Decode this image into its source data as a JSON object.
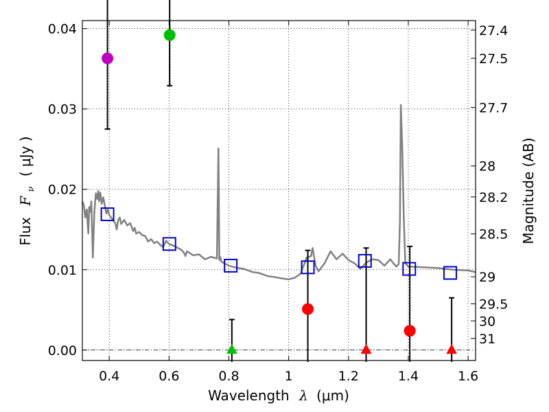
{
  "chart_data": {
    "type": "scatter",
    "title": "",
    "xlabel": {
      "prefix": "Wavelength",
      "symbol": "λ",
      "unit": "(μm)"
    },
    "ylabel": {
      "prefix": "Flux",
      "symbol": "F",
      "subscript": "ν",
      "unit": "( μJy )"
    },
    "ylabel_right": "Magnitude (AB)",
    "xlim": [
      0.31,
      1.625
    ],
    "ylim": [
      -0.0013,
      0.041
    ],
    "grid": true,
    "x_ticks": [
      0.4,
      0.6,
      0.8,
      1.0,
      1.2,
      1.4,
      1.6
    ],
    "x_tick_labels": [
      "0.4",
      "0.6",
      "0.8",
      "1",
      "1.2",
      "1.4",
      "1.6"
    ],
    "y_ticks": [
      0.0,
      0.01,
      0.02,
      0.03,
      0.04
    ],
    "y_tick_labels": [
      "0.00",
      "0.01",
      "0.02",
      "0.03",
      "0.04"
    ],
    "mag_ticks": [
      {
        "mag": 27.4,
        "label": "27.4"
      },
      {
        "mag": 27.5,
        "label": "27.5"
      },
      {
        "mag": 27.7,
        "label": "27.7"
      },
      {
        "mag": 28.0,
        "label": "28"
      },
      {
        "mag": 28.2,
        "label": "28.2"
      },
      {
        "mag": 28.5,
        "label": "28.5"
      },
      {
        "mag": 29.0,
        "label": "29"
      },
      {
        "mag": 29.5,
        "label": "29.5"
      },
      {
        "mag": 30.0,
        "label": "30"
      },
      {
        "mag": 31.0,
        "label": "31"
      }
    ],
    "model_spectrum": {
      "name": "SED model",
      "color": "#808080",
      "x": [
        0.31,
        0.315,
        0.32,
        0.325,
        0.33,
        0.333,
        0.337,
        0.34,
        0.345,
        0.35,
        0.355,
        0.36,
        0.363,
        0.366,
        0.37,
        0.375,
        0.38,
        0.385,
        0.39,
        0.395,
        0.4,
        0.41,
        0.42,
        0.425,
        0.43,
        0.435,
        0.44,
        0.45,
        0.46,
        0.47,
        0.48,
        0.485,
        0.49,
        0.5,
        0.51,
        0.52,
        0.53,
        0.54,
        0.55,
        0.56,
        0.57,
        0.58,
        0.59,
        0.6,
        0.62,
        0.64,
        0.65,
        0.655,
        0.66,
        0.68,
        0.7,
        0.72,
        0.74,
        0.76,
        0.765,
        0.768,
        0.771,
        0.775,
        0.8,
        0.82,
        0.85,
        0.88,
        0.9,
        0.93,
        0.95,
        0.98,
        1.0,
        1.02,
        1.04,
        1.06,
        1.075,
        1.08,
        1.09,
        1.1,
        1.12,
        1.14,
        1.16,
        1.18,
        1.2,
        1.22,
        1.24,
        1.26,
        1.28,
        1.3,
        1.32,
        1.34,
        1.35,
        1.36,
        1.368,
        1.372,
        1.375,
        1.38,
        1.385,
        1.39,
        1.4,
        1.45,
        1.5,
        1.55,
        1.6,
        1.625
      ],
      "y": [
        0.0185,
        0.018,
        0.0165,
        0.0175,
        0.0145,
        0.0178,
        0.0172,
        0.0185,
        0.0115,
        0.017,
        0.0195,
        0.0188,
        0.0198,
        0.0185,
        0.0196,
        0.0182,
        0.019,
        0.018,
        0.017,
        0.0175,
        0.0168,
        0.0163,
        0.0158,
        0.015,
        0.0162,
        0.0165,
        0.0157,
        0.0162,
        0.0155,
        0.0158,
        0.0148,
        0.0152,
        0.0145,
        0.0147,
        0.0143,
        0.0142,
        0.0135,
        0.0138,
        0.0133,
        0.0135,
        0.0131,
        0.0128,
        0.0136,
        0.0132,
        0.0129,
        0.0125,
        0.0121,
        0.0117,
        0.0123,
        0.0118,
        0.0119,
        0.0113,
        0.0116,
        0.0114,
        0.0251,
        0.0112,
        0.0116,
        0.011,
        0.0105,
        0.0103,
        0.0101,
        0.0097,
        0.0096,
        0.0092,
        0.0091,
        0.0089,
        0.0088,
        0.009,
        0.0095,
        0.0115,
        0.0117,
        0.0127,
        0.0105,
        0.0098,
        0.0108,
        0.0123,
        0.0113,
        0.012,
        0.0112,
        0.0108,
        0.0101,
        0.0109,
        0.0113,
        0.0112,
        0.0105,
        0.0113,
        0.0108,
        0.0104,
        0.0107,
        0.016,
        0.0305,
        0.025,
        0.0165,
        0.0108,
        0.0104,
        0.0103,
        0.0102,
        0.01,
        0.0099,
        0.0097
      ]
    },
    "model_photometry": {
      "name": "model band fluxes",
      "marker": "open-square",
      "color": "#0000cc",
      "x": [
        0.394,
        0.601,
        0.806,
        1.064,
        1.255,
        1.403,
        1.54
      ],
      "y": [
        0.0169,
        0.0132,
        0.0105,
        0.0103,
        0.0111,
        0.0101,
        0.0096
      ]
    },
    "observed": [
      {
        "name": "detection",
        "x": 0.394,
        "y": 0.0363,
        "err": 0.0088,
        "marker": "circle",
        "color": "#bf00bf"
      },
      {
        "name": "detection",
        "x": 0.602,
        "y": 0.0392,
        "err": 0.0063,
        "marker": "circle",
        "color": "#00bf00"
      },
      {
        "name": "upper limit",
        "x": 0.81,
        "y": 0.0,
        "err": 0.0038,
        "marker": "triangle",
        "color": "#00bf00"
      },
      {
        "name": "detection",
        "x": 1.064,
        "y": 0.0051,
        "err": 0.0073,
        "marker": "circle",
        "color": "#ff0000"
      },
      {
        "name": "upper limit",
        "x": 1.259,
        "y": 0.0,
        "err": 0.0127,
        "marker": "triangle",
        "color": "#ff0000"
      },
      {
        "name": "detection",
        "x": 1.405,
        "y": 0.0024,
        "err": 0.0105,
        "marker": "circle",
        "color": "#ff0000"
      },
      {
        "name": "upper limit",
        "x": 1.545,
        "y": 0.0,
        "err": 0.0065,
        "marker": "triangle",
        "color": "#ff0000"
      }
    ]
  }
}
